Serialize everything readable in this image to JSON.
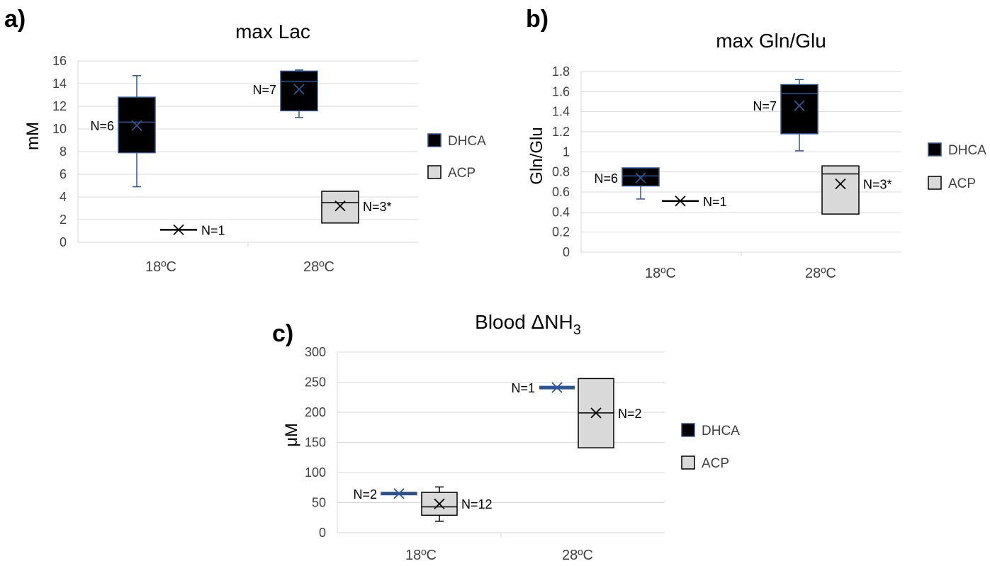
{
  "colors": {
    "dhca_fill": "#000000",
    "dhca_stroke": "#2f5597",
    "acp_fill": "#d9d9d9",
    "acp_stroke": "#000000",
    "grid": "#d9d9d9"
  },
  "chart_data": [
    {
      "type": "box",
      "panel_label": "a)",
      "title": "max Lac",
      "ylabel": "mM",
      "ylim": [
        0,
        16
      ],
      "ytick_labels": [
        "0",
        "2",
        "4",
        "6",
        "8",
        "10",
        "12",
        "14",
        "16"
      ],
      "categories": [
        "18ºC",
        "28ºC"
      ],
      "legend": [
        "DHCA",
        "ACP"
      ],
      "legend_position": "right",
      "series": [
        {
          "name": "DHCA",
          "boxes": [
            {
              "category": "18ºC",
              "min": 4.9,
              "q1": 7.9,
              "median": 10.6,
              "q3": 12.8,
              "max": 14.7,
              "mean": 10.3,
              "n_label": "N=6",
              "n_label_side": "left"
            },
            {
              "category": "28ºC",
              "min": 11.0,
              "q1": 11.6,
              "median": 14.2,
              "q3": 15.1,
              "max": 15.2,
              "mean": 13.5,
              "n_label": "N=7",
              "n_label_side": "left"
            }
          ]
        },
        {
          "name": "ACP",
          "boxes": [
            {
              "category": "18ºC",
              "min": 1.1,
              "q1": 1.1,
              "median": 1.1,
              "q3": 1.1,
              "max": 1.1,
              "mean": 1.1,
              "n_label": "N=1",
              "n_label_side": "right"
            },
            {
              "category": "28ºC",
              "min": 1.7,
              "q1": 1.7,
              "median": 3.5,
              "q3": 4.5,
              "max": 4.5,
              "mean": 3.2,
              "n_label": "N=3*",
              "n_label_side": "right"
            }
          ]
        }
      ]
    },
    {
      "type": "box",
      "panel_label": "b)",
      "title": "max Gln/Glu",
      "ylabel": "Gln/Glu",
      "ylim": [
        0,
        1.8
      ],
      "ytick_labels": [
        "0",
        "0.2",
        "0.4",
        "0.6",
        "0.8",
        "1",
        "1.2",
        "1.4",
        "1.6",
        "1.8"
      ],
      "categories": [
        "18ºC",
        "28ºC"
      ],
      "legend": [
        "DHCA",
        "ACP"
      ],
      "legend_position": "right",
      "series": [
        {
          "name": "DHCA",
          "boxes": [
            {
              "category": "18ºC",
              "min": 0.53,
              "q1": 0.66,
              "median": 0.76,
              "q3": 0.84,
              "max": 0.84,
              "mean": 0.74,
              "n_label": "N=6",
              "n_label_side": "left"
            },
            {
              "category": "28ºC",
              "min": 1.01,
              "q1": 1.18,
              "median": 1.58,
              "q3": 1.67,
              "max": 1.72,
              "mean": 1.46,
              "n_label": "N=7",
              "n_label_side": "left"
            }
          ]
        },
        {
          "name": "ACP",
          "boxes": [
            {
              "category": "18ºC",
              "min": 0.51,
              "q1": 0.51,
              "median": 0.51,
              "q3": 0.51,
              "max": 0.51,
              "mean": 0.51,
              "n_label": "N=1",
              "n_label_side": "right"
            },
            {
              "category": "28ºC",
              "min": 0.38,
              "q1": 0.38,
              "median": 0.78,
              "q3": 0.86,
              "max": 0.86,
              "mean": 0.68,
              "n_label": "N=3*",
              "n_label_side": "right"
            }
          ]
        }
      ]
    },
    {
      "type": "box",
      "panel_label": "c)",
      "title": "Blood ΔNH",
      "title_subscript": "3",
      "ylabel": "μM",
      "ylim": [
        0,
        300
      ],
      "ytick_labels": [
        "0",
        "50",
        "100",
        "150",
        "200",
        "250",
        "300"
      ],
      "categories": [
        "18ºC",
        "28ºC"
      ],
      "legend": [
        "DHCA",
        "ACP"
      ],
      "legend_position": "right",
      "series": [
        {
          "name": "DHCA",
          "boxes": [
            {
              "category": "18ºC",
              "min": 63,
              "q1": 63,
              "median": 65,
              "q3": 67,
              "max": 67,
              "mean": 65,
              "n_label": "N=2",
              "n_label_side": "left"
            },
            {
              "category": "28ºC",
              "min": 241,
              "q1": 241,
              "median": 241,
              "q3": 241,
              "max": 241,
              "mean": 241,
              "n_label": "N=1",
              "n_label_side": "left"
            }
          ]
        },
        {
          "name": "ACP",
          "boxes": [
            {
              "category": "18ºC",
              "min": 19,
              "q1": 29,
              "median": 43,
              "q3": 67,
              "max": 76,
              "mean": 48,
              "n_label": "N=12",
              "n_label_side": "right"
            },
            {
              "category": "28ºC",
              "min": 141,
              "q1": 141,
              "median": 199,
              "q3": 256,
              "max": 256,
              "mean": 199,
              "n_label": "N=2",
              "n_label_side": "right"
            }
          ]
        }
      ]
    }
  ]
}
